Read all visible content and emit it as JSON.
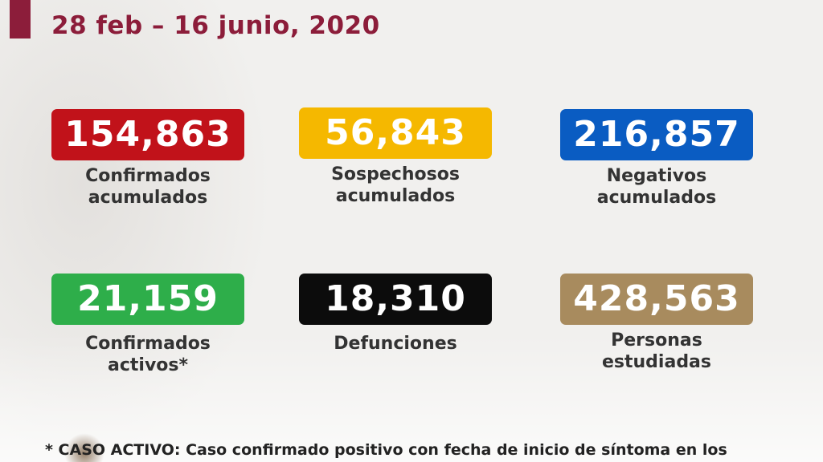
{
  "header": {
    "date_range": "28 feb – 16 junio, 2020"
  },
  "stats": [
    {
      "value": "154,863",
      "label_line1": "Confirmados",
      "label_line2": "acumulados",
      "color": "#c1121a"
    },
    {
      "value": "56,843",
      "label_line1": "Sospechosos",
      "label_line2": "acumulados",
      "color": "#f5b800"
    },
    {
      "value": "216,857",
      "label_line1": "Negativos",
      "label_line2": "acumulados",
      "color": "#0a5cc2"
    },
    {
      "value": "21,159",
      "label_line1": "Confirmados",
      "label_line2": "activos*",
      "color": "#2eae4a"
    },
    {
      "value": "18,310",
      "label_line1": "Defunciones",
      "label_line2": "",
      "color": "#0c0c0c"
    },
    {
      "value": "428,563",
      "label_line1": "Personas",
      "label_line2": "estudiadas",
      "color": "#a88b5e"
    }
  ],
  "footnote": {
    "text": "* CASO ACTIVO: Caso confirmado positivo con fecha de inicio de síntoma en los"
  },
  "colors": {
    "accent": "#8c1d3a"
  }
}
